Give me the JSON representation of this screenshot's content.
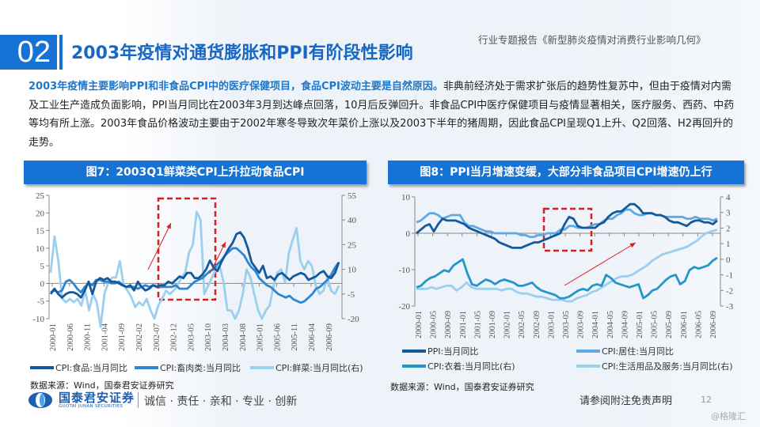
{
  "header": {
    "section_number": "02",
    "title": "2003年疫情对通货膨胀和PPI有阶段性影响",
    "report_subtitle": "行业专题报告《新型肺炎疫情对消费行业影响几何》"
  },
  "paragraph": {
    "highlight": "2003年疫情主要影响PPI和非食品CPI中的医疗保健项目，食品CPI波动主要是自然原因。",
    "body": "非典前经济处于需求扩张后的趋势性复苏中，但由于疫情对内需及工业生产造成负面影响，PPI当月同比在2003年3月到达峰点回落，10月后反弹回升。非食品CPI中医疗保健项目与疫情显著相关，医疗服务、西药、中药等均有所上涨。2003年食品价格波动主要由于2002年寒冬导致次年菜价上涨以及2003下半年的猪周期，因此食品CPI呈现Q1上升、Q2回落、H2再回升的走势。"
  },
  "colors": {
    "accent": "#1673d5",
    "series_dark": "#14599c",
    "series_mid": "#2f86d0",
    "series_light": "#9ccfee",
    "series_teal": "#2396c9",
    "series_sky": "#5ea9e6",
    "highlight_box": "#d42020"
  },
  "chart_data": [
    {
      "type": "line",
      "title": "图7：2003Q1鲜菜类CPI上升拉动食品CPI",
      "x_tick_labels": [
        "2000-01",
        "2000-06",
        "2000-11",
        "2001-04",
        "2001-09",
        "2002-02",
        "2002-07",
        "2002-12",
        "2003-05",
        "2003-10",
        "2004-03",
        "2004-08",
        "2005-01",
        "2005-06",
        "2005-11",
        "2006-04",
        "2006-09"
      ],
      "y_left": {
        "ticks": [
          "25",
          "20",
          "15",
          "10",
          "5",
          "0",
          "-5",
          "-10"
        ],
        "ylim": [
          -10,
          25
        ]
      },
      "y_right": {
        "ticks": [
          "55",
          "40",
          "25",
          "10",
          "-5",
          "-20"
        ],
        "ylim": [
          -20,
          55
        ]
      },
      "series": [
        {
          "name": "CPI:食品:当月同比",
          "axis": "left",
          "values": [
            -3,
            -1.5,
            -3,
            -4,
            -3,
            -2.5,
            -2.5,
            -3,
            -4,
            -2,
            0.5,
            -3,
            0.5,
            1.5,
            1,
            1.5,
            0.5,
            0.5,
            0,
            -0.5,
            -1,
            -0.5,
            -2,
            0.5,
            -1,
            -2,
            -1.5,
            -0.5,
            -1,
            -0.5,
            -0.5,
            0.5,
            0,
            1,
            2,
            1.5,
            3,
            3,
            1.5,
            1.5,
            2.5,
            4,
            6.5,
            4.5,
            3.5,
            6,
            8,
            10,
            11.5,
            14,
            14.5,
            13,
            10,
            6,
            4.5,
            3,
            5,
            1.5,
            2,
            1,
            2.5,
            3,
            2,
            1,
            2,
            2.5,
            3,
            2.5,
            1,
            1.5,
            2,
            3,
            3.5,
            2,
            1.5,
            3,
            6
          ]
        },
        {
          "name": "CPI:畜肉类:当月同比",
          "axis": "left",
          "values": [
            -2.5,
            -2,
            -2.5,
            -2,
            0.5,
            1,
            0,
            -1.5,
            -2.5,
            -1,
            0,
            -0.5,
            1,
            1,
            0.5,
            0.5,
            0,
            0,
            0.5,
            -0.5,
            -1,
            -1,
            -1,
            -1.5,
            -1,
            -0.5,
            -1,
            -0.5,
            -1,
            -1,
            -1,
            -1,
            -1,
            -0.5,
            -1.5,
            -1.5,
            -1.5,
            -0.5,
            0.5,
            1,
            1.5,
            2.5,
            3.5,
            4,
            5.5,
            6.5,
            8,
            9,
            10,
            10,
            9,
            8,
            6,
            4.5,
            3.5,
            1.5,
            0.5,
            -0.5,
            -1,
            -2,
            -3,
            -3.5,
            -4,
            -3.5,
            -4.5,
            -5,
            -5.5,
            -5,
            -4,
            -3,
            -1.5,
            -1,
            0,
            1,
            2.5,
            4.5,
            6
          ]
        },
        {
          "name": "CPI:鲜菜:当月同比(右)",
          "axis": "right",
          "values": [
            8,
            30,
            15,
            -8,
            -10,
            -8,
            -10,
            -8,
            -12,
            -3,
            -15,
            -5,
            -10,
            -25,
            -5,
            2,
            5,
            5,
            15,
            0,
            -3,
            -7,
            -13,
            -10,
            -12,
            -8,
            -15,
            -20,
            -12,
            -8,
            -3,
            -5,
            -3,
            0,
            5,
            8,
            20,
            25,
            45,
            40,
            -5,
            0,
            5,
            10,
            12,
            2,
            -15,
            -15,
            -20,
            -15,
            -5,
            10,
            5,
            -5,
            -15,
            -20,
            -15,
            -12,
            0,
            8,
            10,
            2,
            20,
            28,
            35,
            15,
            10,
            15,
            12,
            0,
            -5,
            -3,
            5,
            -3,
            -5,
            0
          ]
        }
      ],
      "annotations": [
        "highlight box around 2002-12 to 2003-05",
        "upward arrows"
      ]
    },
    {
      "type": "line",
      "title": "图8：PPI当月增速变缓，大部分非食品项目CPI增速仍上行",
      "x_tick_labels": [
        "2000-01",
        "2000-05",
        "2000-09",
        "2001-01",
        "2001-05",
        "2001-09",
        "2002-01",
        "2002-05",
        "2002-09",
        "2003-01",
        "2003-05",
        "2003-09",
        "2004-01",
        "2004-05",
        "2004-09",
        "2005-01",
        "2005-05",
        "2005-09",
        "2006-01",
        "2006-05",
        "2006-09"
      ],
      "y_left": {
        "ticks": [
          "10",
          "0",
          "-10",
          "-20"
        ],
        "ylim": [
          -20,
          10
        ]
      },
      "y_right": {
        "ticks": [
          "4",
          "3",
          "2",
          "1",
          "0",
          "-1",
          "-2",
          "-3"
        ],
        "ylim": [
          -3,
          4
        ]
      },
      "series": [
        {
          "name": "PPI:当月同比",
          "axis": "left",
          "values": [
            0,
            1,
            2,
            2.5,
            0.5,
            2.5,
            4,
            3.5,
            3.5,
            3.5,
            3,
            2.5,
            1.5,
            1,
            0.5,
            0,
            -0.5,
            -1,
            -1.5,
            -2.5,
            -3,
            -3.5,
            -4,
            -4,
            -4,
            -3.5,
            -3,
            -2.5,
            -2.5,
            -2,
            -1.5,
            -1,
            -0.5,
            0,
            2.5,
            4.5,
            4,
            2,
            1.5,
            1.5,
            1.5,
            1.5,
            2.5,
            3,
            4.5,
            5.5,
            6,
            6,
            7,
            8,
            8,
            7,
            5.5,
            5.5,
            5.5,
            5,
            5,
            4.5,
            3.5,
            3,
            3,
            2.5,
            2,
            3,
            3.5,
            3.5,
            3,
            3,
            2.5,
            3.5
          ]
        },
        {
          "name": "CPI:居住:当月同比",
          "axis": "left",
          "values": [
            3,
            3.5,
            4.5,
            5.5,
            5.5,
            5,
            4,
            4.5,
            5,
            5,
            5,
            3,
            2,
            2,
            1.5,
            1,
            0.5,
            0.5,
            0,
            0,
            0,
            0,
            0,
            0,
            -0.5,
            -0.5,
            -1,
            -1,
            -0.5,
            -0.5,
            0,
            0,
            0,
            1,
            1,
            2,
            2,
            1.5,
            1.5,
            1.5,
            2,
            2.5,
            2.5,
            3.5,
            4,
            4,
            5,
            5.5,
            6.5,
            6.5,
            5.5,
            5,
            5,
            5.5,
            5.5,
            5,
            5,
            4.5,
            4.5,
            4.5,
            4.5,
            4.5,
            4,
            4,
            4.5,
            4,
            4,
            4,
            3.5,
            4
          ]
        },
        {
          "name": "CPI:衣着:当月同比(右)",
          "axis": "right",
          "values": [
            -1.8,
            -1.7,
            -1.4,
            -1.2,
            -1.1,
            -0.9,
            -0.7,
            -0.8,
            -0.4,
            -0.2,
            0,
            -0.9,
            -1.6,
            -1.7,
            -1.5,
            -1.3,
            -1.4,
            -1.6,
            -1.4,
            -1.3,
            -1.4,
            -1.5,
            -1.7,
            -1.7,
            -1.6,
            -1.5,
            -1.8,
            -2.0,
            -2.1,
            -2.2,
            -2.3,
            -2.5,
            -2.5,
            -2.4,
            -2.2,
            -2.0,
            -1.9,
            -2.0,
            -1.7,
            -1.6,
            -1.7,
            -1.0,
            -1.2,
            -1.5,
            -1.6,
            -1.7,
            -1.8,
            -1.7,
            -1.6,
            -2.5,
            -2.3,
            -2.0,
            -1.9,
            -1.6,
            -1.3,
            -1.1,
            -1.0,
            -1.6,
            -1.4,
            -0.7,
            -0.5,
            -0.6,
            -0.5,
            -0.4,
            -0.1,
            0.1
          ]
        },
        {
          "name": "CPI:生活用品及服务:当月同比(右)",
          "axis": "right",
          "values": [
            -1.9,
            -1.9,
            -1.9,
            -1.8,
            -1.9,
            -1.8,
            -1.7,
            -1.7,
            -2.0,
            -1.8,
            -1.5,
            -1.8,
            -1.9,
            -1.9,
            -1.9,
            -1.9,
            -1.9,
            -2.0,
            -1.9,
            -1.9,
            -2.1,
            -2.2,
            -2.2,
            -2.3,
            -2.4,
            -2.4,
            -2.5,
            -2.6,
            -2.6,
            -2.6,
            -2.7,
            -2.7,
            -2.5,
            -2.4,
            -2.3,
            -2.1,
            -2.0,
            -1.8,
            -1.6,
            -1.4,
            -1.2,
            -1.1,
            -1.1,
            -1.0,
            -0.8,
            -0.6,
            -0.4,
            -0.1,
            0.1,
            0.3,
            0.4,
            0.5,
            0.6,
            0.7,
            0.8,
            1.0,
            1.2,
            1.5,
            1.7,
            1.8,
            1.9
          ]
        }
      ],
      "annotations": [
        "highlight box around 2003-01 to 2003-09",
        "upward arrow"
      ]
    }
  ],
  "fig7": {
    "title": "图7：2003Q1鲜菜类CPI上升拉动食品CPI",
    "legend": [
      "CPI:食品:当月同比",
      "CPI:畜肉类:当月同比",
      "CPI:鲜菜:当月同比(右)"
    ],
    "source": "数据来源：Wind，国泰君安证券研究"
  },
  "fig8": {
    "title": "图8：PPI当月增速变缓，大部分非食品项目CPI增速仍上行",
    "legend": [
      "PPI:当月同比",
      "CPI:居住:当月同比",
      "CPI:衣着:当月同比(右)",
      "CPI:生活用品及服务:当月同比(右)"
    ],
    "source": "数据来源：Wind，国泰君安证券研究"
  },
  "footer": {
    "logo_name": "国泰君安证券",
    "logo_sub": "GUOTAI JUNAN SECURITIES",
    "slogan": "诚信 · 责任 · 亲和 · 专业 · 创新",
    "disclaimer": "请参阅附注免责声明",
    "page_number": "12",
    "watermark": "@格隆汇"
  }
}
